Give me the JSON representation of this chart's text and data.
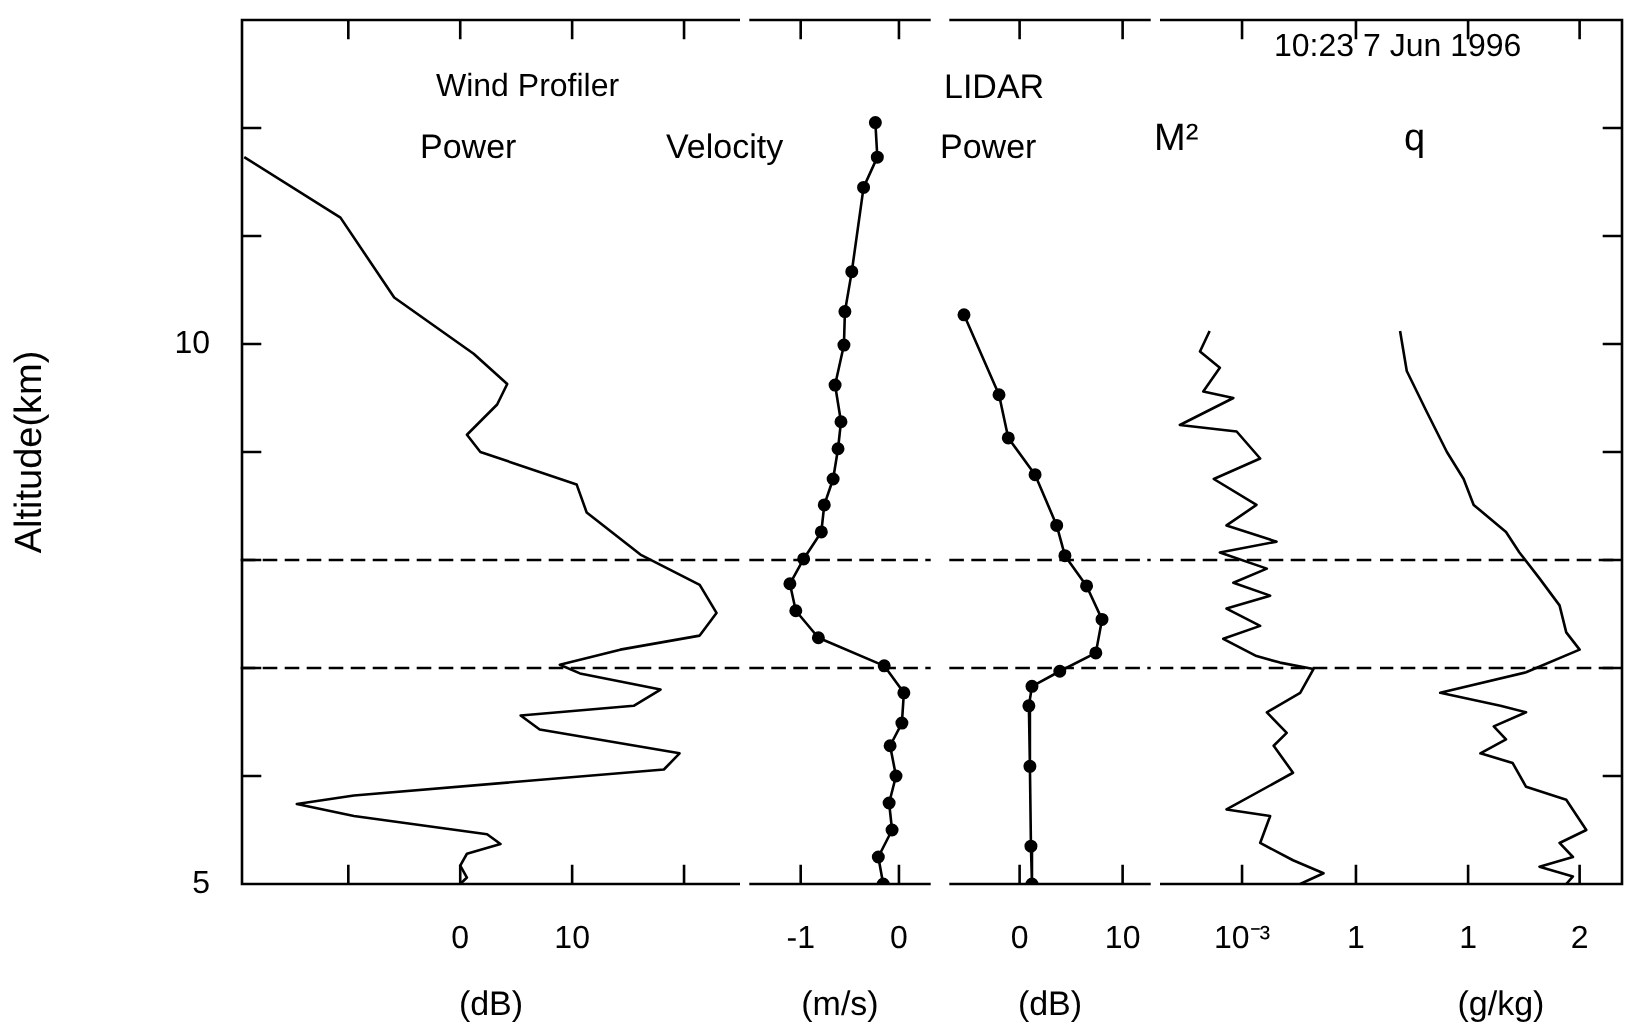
{
  "chart_data": [
    {
      "type": "line",
      "title": "Power",
      "annotations": [
        "Wind Profiler"
      ],
      "xlabel": "(dB)",
      "ylabel": "Altitude(km)",
      "color": "#000000",
      "marker": "none",
      "line_style": "solid",
      "x": [
        -19.3,
        -10.7,
        -5.9,
        1.2,
        4.2,
        3.3,
        0.6,
        1.8,
        10.4,
        11.3,
        16.1,
        21.4,
        22.9,
        21.4,
        14.3,
        8.9,
        10.7,
        17.9,
        15.5,
        5.4,
        7.1,
        19.6,
        18.2,
        -9.5,
        -14.6,
        -9.5,
        2.4,
        3.6,
        0.6,
        0,
        0.6,
        0
      ],
      "values": [
        11.73,
        11.17,
        10.43,
        9.91,
        9.63,
        9.44,
        9.16,
        9.0,
        8.7,
        8.44,
        8.05,
        7.77,
        7.51,
        7.3,
        7.17,
        7.03,
        6.95,
        6.8,
        6.65,
        6.56,
        6.43,
        6.21,
        6.06,
        5.82,
        5.74,
        5.63,
        5.46,
        5.37,
        5.28,
        5.17,
        5.06,
        5.0
      ],
      "xlim": [
        -19.5,
        25
      ],
      "xticks": [
        {
          "value": -10,
          "label": null
        },
        0,
        10,
        {
          "value": 20,
          "label": null
        }
      ],
      "ylim": [
        5,
        13
      ],
      "yticks": [
        5,
        {
          "value": 6,
          "label": null
        },
        {
          "value": 7,
          "label": null
        },
        {
          "value": 8,
          "label": null
        },
        {
          "value": 9,
          "label": null
        },
        10,
        {
          "value": 11,
          "label": null
        },
        {
          "value": 12,
          "label": null
        }
      ],
      "ref_lines": [
        {
          "axis": "y",
          "value": 7,
          "line_style": "dashed"
        },
        {
          "axis": "y",
          "value": 8,
          "line_style": "dashed"
        }
      ]
    },
    {
      "type": "line",
      "title": "Velocity",
      "xlabel": "(m/s)",
      "color": "#000000",
      "marker": "circle",
      "line_style": "solid",
      "tick_labels": "x",
      "x": [
        -0.24,
        -0.22,
        -0.36,
        -0.48,
        -0.55,
        -0.56,
        -0.65,
        -0.59,
        -0.62,
        -0.67,
        -0.76,
        -0.79,
        -0.97,
        -1.11,
        -1.05,
        -0.82,
        -0.15,
        0.05,
        0.03,
        -0.09,
        -0.03,
        -0.1,
        -0.07,
        -0.21,
        -0.16
      ],
      "values": [
        12.05,
        11.73,
        11.45,
        10.67,
        10.3,
        9.99,
        9.62,
        9.28,
        9.03,
        8.75,
        8.51,
        8.26,
        8.01,
        7.78,
        7.53,
        7.28,
        7.02,
        6.77,
        6.49,
        6.28,
        6.0,
        5.75,
        5.5,
        5.25,
        5.0
      ],
      "xlim": [
        -1.51,
        0.31
      ],
      "xticks": [
        -1,
        0
      ],
      "ylim": [
        5,
        13
      ],
      "ref_lines": [
        {
          "axis": "y",
          "value": 7,
          "line_style": "dashed"
        },
        {
          "axis": "y",
          "value": 8,
          "line_style": "dashed"
        }
      ]
    },
    {
      "type": "line",
      "title": "LIDAR",
      "subtitle": "Power",
      "xlabel": "(dB)",
      "color": "#000000",
      "marker": "circle",
      "line_style": "solid",
      "tick_labels": "x",
      "x": [
        -5.4,
        -2.0,
        -1.1,
        1.5,
        3.6,
        4.4,
        6.5,
        8.0,
        7.4,
        3.9,
        1.2,
        0.9,
        1.0,
        1.1,
        1.2
      ],
      "values": [
        10.27,
        9.53,
        9.13,
        8.79,
        8.32,
        8.04,
        7.76,
        7.45,
        7.14,
        6.97,
        6.83,
        6.65,
        6.09,
        5.35,
        5.0
      ],
      "xlim": [
        -6.7,
        12.6
      ],
      "xticks": [
        0,
        10
      ],
      "ylim": [
        5,
        13
      ],
      "ref_lines": [
        {
          "axis": "y",
          "value": 7,
          "line_style": "dashed"
        },
        {
          "axis": "y",
          "value": 8,
          "line_style": "dashed"
        }
      ]
    },
    {
      "type": "line",
      "title": "M²",
      "color": "#000000",
      "marker": "none",
      "line_style": "solid",
      "tick_labels": "x",
      "log": "x",
      "x": [
        0.00014,
        7.8e-05,
        0.00026,
        9.5e-05,
        0.00059,
        2.3e-05,
        0.00072,
        0.003,
        0.00018,
        0.0024,
        0.00039,
        0.0081,
        0.00026,
        0.0045,
        0.00059,
        0.0055,
        0.00039,
        0.003,
        0.00032,
        0.0024,
        0.01,
        0.076,
        0.034,
        0.0045,
        0.015,
        0.0068,
        0.022,
        0.00039,
        0.0055,
        0.003,
        0.022,
        0.14,
        0.034
      ],
      "values": [
        10.12,
        9.93,
        9.78,
        9.56,
        9.5,
        9.25,
        9.19,
        8.94,
        8.75,
        8.51,
        8.32,
        8.17,
        8.07,
        7.92,
        7.79,
        7.67,
        7.55,
        7.39,
        7.27,
        7.11,
        7.05,
        6.99,
        6.77,
        6.59,
        6.4,
        6.28,
        6.03,
        5.69,
        5.63,
        5.38,
        5.22,
        5.1,
        5.0
      ],
      "xlim": [
        6.9e-06,
        4.3
      ],
      "xticks": [
        {
          "value": 0.001,
          "label": "10⁻³"
        },
        1
      ],
      "ylim": [
        5,
        13
      ],
      "ref_lines": [
        {
          "axis": "y",
          "value": 7,
          "line_style": "dashed"
        },
        {
          "axis": "y",
          "value": 8,
          "line_style": "dashed"
        }
      ]
    },
    {
      "type": "line",
      "title": "q",
      "annotations": [
        "10:23 7 Jun 1996"
      ],
      "xlabel": "(g/kg)",
      "color": "#000000",
      "marker": "none",
      "line_style": "solid",
      "tick_labels": "x",
      "x": [
        0.39,
        0.45,
        0.63,
        0.81,
        0.96,
        1.05,
        1.34,
        1.46,
        1.64,
        1.82,
        1.88,
        2.0,
        1.52,
        0.75,
        1.29,
        1.52,
        1.23,
        1.34,
        1.11,
        1.4,
        1.52,
        1.88,
        2.06,
        1.82,
        1.94,
        1.64,
        1.94,
        1.88
      ],
      "values": [
        10.12,
        9.75,
        9.37,
        9.0,
        8.75,
        8.51,
        8.26,
        8.07,
        7.83,
        7.58,
        7.33,
        7.17,
        6.96,
        6.77,
        6.65,
        6.59,
        6.46,
        6.34,
        6.21,
        6.12,
        5.9,
        5.78,
        5.5,
        5.38,
        5.25,
        5.16,
        5.07,
        5.0
      ],
      "xlim": [
        0.21,
        2.38
      ],
      "xticks": [
        1,
        2
      ],
      "ylim": [
        5,
        13
      ],
      "yticks": [
        {
          "value": 6,
          "label": null
        },
        {
          "value": 7,
          "label": null
        },
        {
          "value": 8,
          "label": null
        },
        {
          "value": 9,
          "label": null
        },
        {
          "value": 10,
          "label": null
        },
        {
          "value": 11,
          "label": null
        },
        {
          "value": 12,
          "label": null
        }
      ],
      "ref_lines": [
        {
          "axis": "y",
          "value": 7,
          "line_style": "dashed"
        },
        {
          "axis": "y",
          "value": 8,
          "line_style": "dashed"
        }
      ]
    }
  ]
}
